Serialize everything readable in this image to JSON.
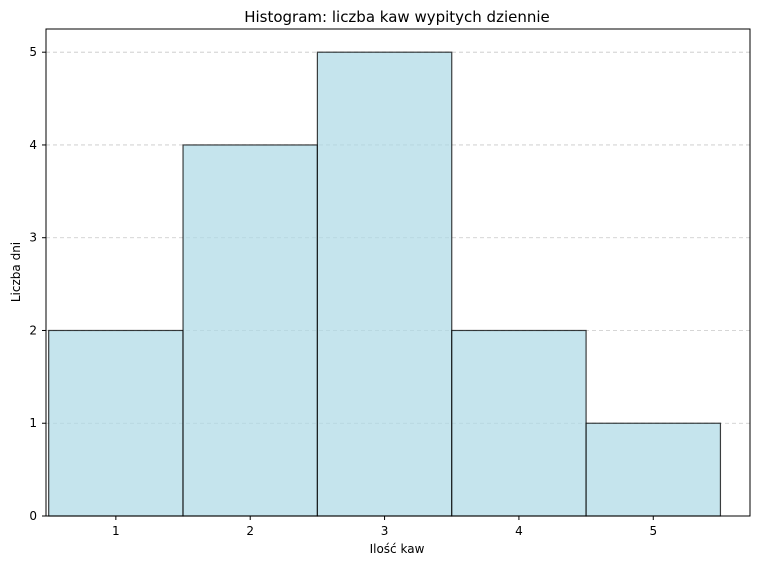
{
  "chart_data": {
    "type": "bar",
    "title": "Histogram: liczba kaw wypitych dziennie",
    "xlabel": "Ilość kaw",
    "ylabel": "Liczba dni",
    "categories": [
      "1",
      "2",
      "3",
      "4",
      "5"
    ],
    "x": [
      1,
      2,
      3,
      4,
      5
    ],
    "values": [
      2,
      4,
      5,
      2,
      1
    ],
    "bar_width": 1,
    "xlim": [
      0.48,
      5.72
    ],
    "ylim": [
      0,
      5.25
    ],
    "yticks": [
      0,
      1,
      2,
      3,
      4,
      5
    ],
    "grid": "horizontal-dashed",
    "legend": "none",
    "colors": {
      "bar_fill": "#add8e6",
      "bar_edge": "#000000",
      "grid": "#b0b0b0"
    }
  }
}
